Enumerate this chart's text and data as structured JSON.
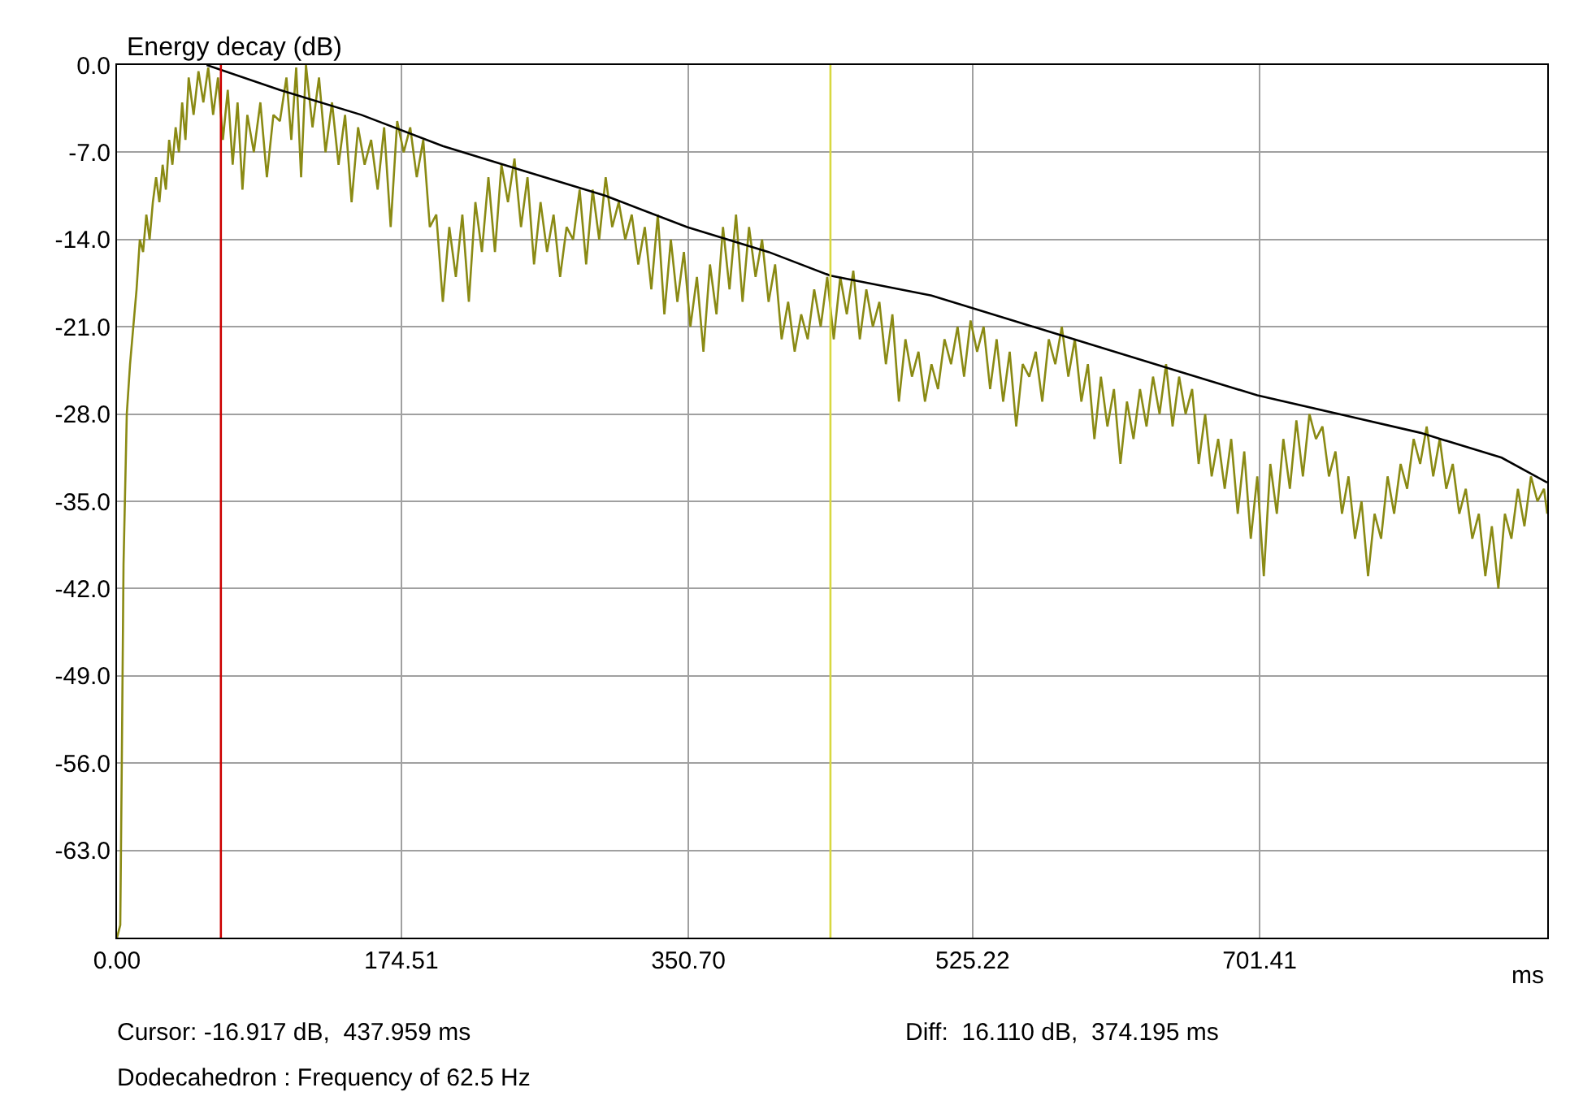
{
  "chart_data": {
    "type": "line",
    "ylabel": "Energy decay (dB)",
    "xlabel": "ms",
    "xlim": [
      0,
      878
    ],
    "ylim": [
      -70,
      0
    ],
    "xticks": [
      {
        "value": 0,
        "label": "0.00"
      },
      {
        "value": 174.51,
        "label": "174.51"
      },
      {
        "value": 350.7,
        "label": "350.70"
      },
      {
        "value": 525.22,
        "label": "525.22"
      },
      {
        "value": 701.41,
        "label": "701.41"
      }
    ],
    "yticks": [
      {
        "value": 0,
        "label": "0.0"
      },
      {
        "value": -7,
        "label": "-7.0"
      },
      {
        "value": -14,
        "label": "-14.0"
      },
      {
        "value": -21,
        "label": "-21.0"
      },
      {
        "value": -28,
        "label": "-28.0"
      },
      {
        "value": -35,
        "label": "-35.0"
      },
      {
        "value": -42,
        "label": "-42.0"
      },
      {
        "value": -49,
        "label": "-49.0"
      },
      {
        "value": -56,
        "label": "-56.0"
      },
      {
        "value": -63,
        "label": "-63.0"
      }
    ],
    "grid": true,
    "marker": "none",
    "line_style": "solid",
    "series": [
      {
        "color": "#8a8a14",
        "x": [
          0,
          2,
          3,
          4,
          6,
          8,
          10,
          12,
          14,
          16,
          18,
          20,
          22,
          24,
          26,
          28,
          30,
          32,
          34,
          36,
          38,
          40,
          42,
          44,
          47,
          50,
          53,
          56,
          59,
          62,
          65,
          68,
          71,
          74,
          77,
          80,
          84,
          88,
          92,
          96,
          100,
          104,
          107,
          110,
          113,
          116,
          120,
          124,
          128,
          132,
          136,
          140,
          144,
          148,
          152,
          156,
          160,
          164,
          168,
          172,
          176,
          180,
          184,
          188,
          192,
          196,
          200,
          204,
          208,
          212,
          216,
          220,
          224,
          228,
          232,
          236,
          240,
          244,
          248,
          252,
          256,
          260,
          264,
          268,
          272,
          276,
          280,
          284,
          288,
          292,
          296,
          300,
          304,
          308,
          312,
          316,
          320,
          324,
          328,
          332,
          336,
          340,
          344,
          348,
          352,
          356,
          360,
          364,
          368,
          372,
          376,
          380,
          384,
          388,
          392,
          396,
          400,
          404,
          408,
          412,
          416,
          420,
          424,
          428,
          432,
          436,
          440,
          444,
          448,
          452,
          456,
          460,
          464,
          468,
          472,
          476,
          480,
          484,
          488,
          492,
          496,
          500,
          504,
          508,
          512,
          516,
          520,
          524,
          528,
          532,
          536,
          540,
          544,
          548,
          552,
          556,
          560,
          564,
          568,
          572,
          576,
          580,
          584,
          588,
          592,
          596,
          600,
          604,
          608,
          612,
          616,
          620,
          624,
          628,
          632,
          636,
          640,
          644,
          648,
          652,
          656,
          660,
          664,
          668,
          672,
          676,
          680,
          684,
          688,
          692,
          696,
          700,
          704,
          708,
          712,
          716,
          720,
          724,
          728,
          732,
          736,
          740,
          744,
          748,
          752,
          756,
          760,
          764,
          768,
          772,
          776,
          780,
          784,
          788,
          792,
          796,
          800,
          804,
          808,
          812,
          816,
          820,
          824,
          828,
          832,
          836,
          840,
          844,
          848,
          852,
          856,
          860,
          864,
          868,
          872,
          876,
          878
        ],
        "values": [
          -70,
          -69,
          -55,
          -40,
          -28,
          -24,
          -21,
          -18,
          -14,
          -15,
          -12,
          -14,
          -11,
          -9,
          -11,
          -8,
          -10,
          -6,
          -8,
          -5,
          -7,
          -3,
          -6,
          -1,
          -4,
          -0.5,
          -3,
          -0.2,
          -4,
          -1,
          -6,
          -2,
          -8,
          -3,
          -10,
          -4,
          -7,
          -3,
          -9,
          -4,
          -4.5,
          -1,
          -6,
          -0.2,
          -9,
          0,
          -5,
          -1,
          -7,
          -3,
          -8,
          -4,
          -11,
          -5,
          -8,
          -6,
          -10,
          -5,
          -13,
          -4.5,
          -7,
          -5,
          -9,
          -6,
          -13,
          -12,
          -19,
          -13,
          -17,
          -12,
          -19,
          -11,
          -15,
          -9,
          -15,
          -8,
          -11,
          -7.5,
          -13,
          -9,
          -16,
          -11,
          -15,
          -12,
          -17,
          -13,
          -14,
          -10,
          -16,
          -10,
          -14,
          -9,
          -13,
          -11,
          -14,
          -12,
          -16,
          -13,
          -18,
          -12,
          -20,
          -14,
          -19,
          -15,
          -21,
          -17,
          -23,
          -16,
          -20,
          -13,
          -18,
          -12,
          -19,
          -13,
          -17,
          -14,
          -19,
          -16,
          -22,
          -19,
          -23,
          -20,
          -22,
          -18,
          -21,
          -17,
          -22,
          -17,
          -20,
          -16.5,
          -22,
          -18,
          -21,
          -19,
          -24,
          -20,
          -27,
          -22,
          -25,
          -23,
          -27,
          -24,
          -26,
          -22,
          -24,
          -21,
          -25,
          -20.5,
          -23,
          -21,
          -26,
          -22,
          -27,
          -23,
          -29,
          -24,
          -25,
          -23,
          -27,
          -22,
          -24,
          -21,
          -25,
          -22,
          -27,
          -24,
          -30,
          -25,
          -29,
          -26,
          -32,
          -27,
          -30,
          -26,
          -29,
          -25,
          -28,
          -24,
          -29,
          -25,
          -28,
          -26,
          -32,
          -28,
          -33,
          -30,
          -34,
          -30,
          -36,
          -31,
          -38,
          -33,
          -41,
          -32,
          -36,
          -30,
          -34,
          -28.5,
          -33,
          -28,
          -30,
          -29,
          -33,
          -31,
          -36,
          -33,
          -38,
          -35,
          -41,
          -36,
          -38,
          -33,
          -36,
          -32,
          -34,
          -30,
          -32,
          -29,
          -33,
          -30,
          -34,
          -32,
          -36,
          -34,
          -38,
          -36,
          -41,
          -37,
          -42,
          -36,
          -38,
          -34,
          -37,
          -33,
          -35,
          -34,
          -36
        ]
      },
      {
        "color": "#000000",
        "x": [
          55,
          100,
          150,
          200,
          250,
          300,
          350,
          400,
          438,
          500,
          550,
          600,
          650,
          700,
          750,
          800,
          850,
          878
        ],
        "values": [
          0,
          -2,
          -4,
          -6.5,
          -8.5,
          -10.5,
          -13,
          -15,
          -16.9,
          -18.5,
          -20.5,
          -22.5,
          -24.5,
          -26.5,
          -28,
          -29.5,
          -31.5,
          -33.5
        ]
      }
    ],
    "ref_lines": [
      {
        "axis": "x",
        "value": 63.764,
        "color": "#cc0000"
      },
      {
        "axis": "x",
        "value": 437.959,
        "color": "#d8d840"
      }
    ],
    "annotations": [
      "Cursor: -16.917 dB,  437.959 ms",
      "Diff:  16.110 dB,  374.195 ms",
      "Dodecahedron : Frequency of 62.5 Hz"
    ]
  }
}
